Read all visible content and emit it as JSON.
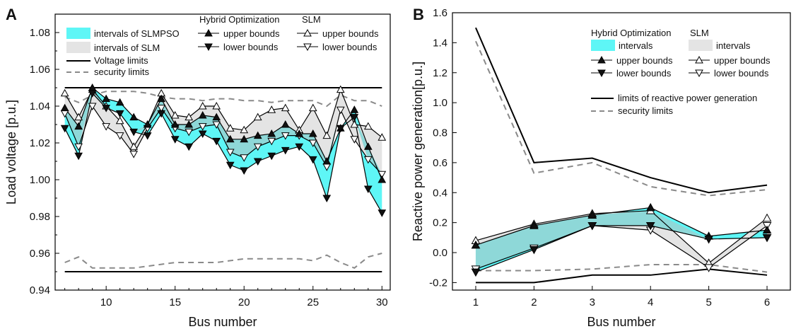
{
  "chart_data": [
    {
      "panel": "A",
      "type": "line",
      "xlabel": "Bus number",
      "ylabel": "Load voltage [p.u.]",
      "xlim": [
        6.3,
        30.6
      ],
      "ylim": [
        0.94,
        1.09
      ],
      "xticks": [
        10,
        15,
        20,
        25,
        30
      ],
      "yticks": [
        0.94,
        0.96,
        0.98,
        1.0,
        1.02,
        1.04,
        1.06,
        1.08
      ],
      "x": [
        7,
        8,
        9,
        10,
        11,
        12,
        13,
        14,
        15,
        16,
        17,
        18,
        19,
        20,
        21,
        22,
        23,
        24,
        25,
        26,
        27,
        28,
        29,
        30
      ],
      "series": [
        {
          "role": "slmpso_upper",
          "values": [
            1.039,
            1.029,
            1.05,
            1.044,
            1.042,
            1.034,
            1.03,
            1.044,
            1.03,
            1.03,
            1.035,
            1.034,
            1.022,
            1.022,
            1.024,
            1.025,
            1.03,
            1.025,
            1.025,
            1.01,
            1.028,
            1.038,
            1.018,
            1.0
          ]
        },
        {
          "role": "slmpso_lower",
          "values": [
            1.028,
            1.013,
            1.047,
            1.039,
            1.036,
            1.026,
            1.024,
            1.036,
            1.022,
            1.018,
            1.025,
            1.021,
            1.008,
            1.005,
            1.01,
            1.013,
            1.016,
            1.018,
            1.011,
            0.99,
            1.028,
            1.034,
            0.995,
            0.982
          ]
        },
        {
          "role": "slm_upper",
          "values": [
            1.047,
            1.034,
            1.049,
            1.04,
            1.032,
            1.018,
            1.03,
            1.047,
            1.035,
            1.034,
            1.04,
            1.04,
            1.028,
            1.027,
            1.034,
            1.038,
            1.039,
            1.027,
            1.039,
            1.024,
            1.049,
            1.03,
            1.029,
            1.023
          ]
        },
        {
          "role": "slm_lower",
          "values": [
            1.036,
            1.018,
            1.04,
            1.029,
            1.024,
            1.014,
            1.028,
            1.039,
            1.028,
            1.026,
            1.029,
            1.03,
            1.015,
            1.012,
            1.018,
            1.021,
            1.024,
            1.024,
            1.02,
            1.007,
            1.038,
            1.022,
            1.011,
            1.003
          ]
        },
        {
          "role": "voltage_limit_upper",
          "values": [
            1.05,
            1.05,
            1.05,
            1.05,
            1.05,
            1.05,
            1.05,
            1.05,
            1.05,
            1.05,
            1.05,
            1.05,
            1.05,
            1.05,
            1.05,
            1.05,
            1.05,
            1.05,
            1.05,
            1.05,
            1.05,
            1.05,
            1.05,
            1.05
          ]
        },
        {
          "role": "voltage_limit_lower",
          "values": [
            0.95,
            0.95,
            0.95,
            0.95,
            0.95,
            0.95,
            0.95,
            0.95,
            0.95,
            0.95,
            0.95,
            0.95,
            0.95,
            0.95,
            0.95,
            0.95,
            0.95,
            0.95,
            0.95,
            0.95,
            0.95,
            0.95,
            0.95,
            0.95
          ]
        },
        {
          "role": "security_upper",
          "values": [
            1.045,
            1.042,
            1.046,
            1.048,
            1.048,
            1.048,
            1.047,
            1.045,
            1.044,
            1.044,
            1.043,
            1.044,
            1.044,
            1.043,
            1.043,
            1.042,
            1.043,
            1.043,
            1.043,
            1.04,
            1.046,
            1.043,
            1.043,
            1.04
          ]
        },
        {
          "role": "security_lower",
          "values": [
            0.955,
            0.958,
            0.952,
            0.952,
            0.952,
            0.952,
            0.953,
            0.954,
            0.955,
            0.955,
            0.955,
            0.955,
            0.956,
            0.957,
            0.957,
            0.957,
            0.957,
            0.957,
            0.956,
            0.959,
            0.955,
            0.952,
            0.958,
            0.96
          ]
        }
      ],
      "legend": {
        "fill_slmpso": "intervals of SLMPSO",
        "fill_slm": "intervals of SLM",
        "voltage_limits": "Voltage limits",
        "security_limits": "security limits",
        "hybrid_title": "Hybrid Optimization",
        "slm_title": "SLM",
        "upper": "upper bounds",
        "lower": "lower bounds"
      }
    },
    {
      "panel": "B",
      "type": "line",
      "xlabel": "Bus number",
      "ylabel": "Reactive power generation[p.u.]",
      "xlim": [
        0.6,
        6.4
      ],
      "ylim": [
        -0.25,
        1.6
      ],
      "xticks": [
        1,
        2,
        3,
        4,
        5,
        6
      ],
      "yticks": [
        -0.2,
        0.0,
        0.2,
        0.4,
        0.6,
        0.8,
        1.0,
        1.2,
        1.4,
        1.6
      ],
      "x": [
        1,
        2,
        3,
        4,
        5,
        6
      ],
      "series": [
        {
          "role": "hybrid_upper",
          "values": [
            0.05,
            0.18,
            0.25,
            0.3,
            0.11,
            0.15
          ]
        },
        {
          "role": "hybrid_lower",
          "values": [
            -0.13,
            0.02,
            0.18,
            0.18,
            0.09,
            0.1
          ]
        },
        {
          "role": "slm_upper",
          "values": [
            0.08,
            0.19,
            0.26,
            0.28,
            -0.07,
            0.23
          ]
        },
        {
          "role": "slm_lower",
          "values": [
            -0.11,
            0.03,
            0.18,
            0.15,
            -0.1,
            0.18
          ]
        },
        {
          "role": "limit_upper",
          "values": [
            1.5,
            0.6,
            0.63,
            0.5,
            0.4,
            0.45
          ]
        },
        {
          "role": "limit_lower",
          "values": [
            -0.2,
            -0.2,
            -0.15,
            -0.15,
            -0.11,
            -0.15
          ]
        },
        {
          "role": "security_upper",
          "values": [
            1.41,
            0.53,
            0.6,
            0.44,
            0.38,
            0.42
          ]
        },
        {
          "role": "security_lower",
          "values": [
            -0.12,
            -0.12,
            -0.11,
            -0.08,
            -0.08,
            -0.13
          ]
        }
      ],
      "legend": {
        "hybrid_title": "Hybrid Optimization",
        "slm_title": "SLM",
        "intervals": "intervals",
        "upper": "upper bounds",
        "lower": "lower bounds",
        "limits": "limits of reactive power generation",
        "security_limits": "security limits"
      }
    }
  ],
  "colors": {
    "cyan": "#5ef6f6",
    "gray": "#e4e4e4",
    "overlap": "#8ed8d8",
    "line": "#000000",
    "dash": "#8a8a8a"
  }
}
